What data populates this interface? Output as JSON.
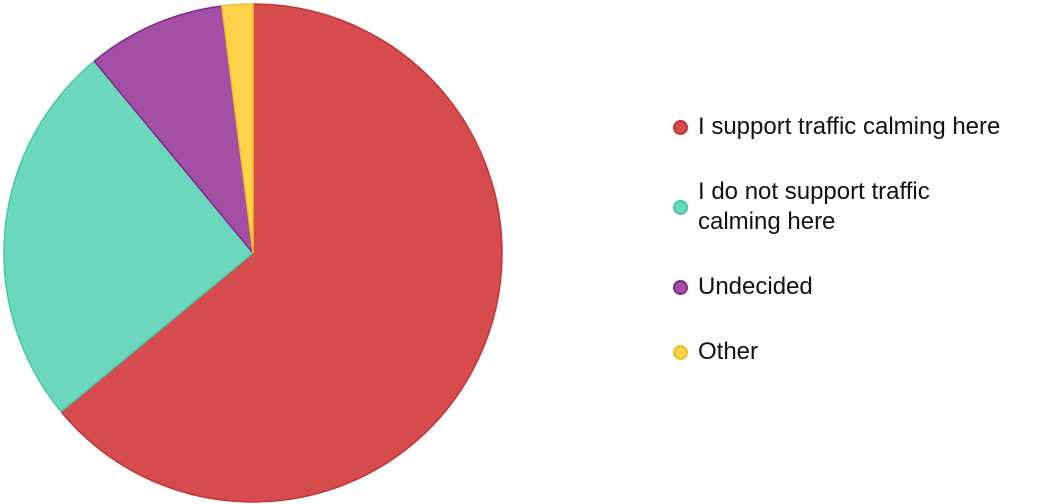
{
  "chart_data": {
    "type": "pie",
    "title": "",
    "legend_position": "right",
    "categories": [
      "I support traffic calming here",
      "I do not support traffic calming here",
      "Undecided",
      "Other"
    ],
    "values": [
      64,
      25,
      9,
      2
    ],
    "colors": [
      "#d64b4d",
      "#6bd8be",
      "#a34fa6",
      "#fcd34a"
    ],
    "stroke_colors": [
      "#c43436",
      "#44c8a8",
      "#80298a",
      "#f0bf26"
    ]
  }
}
